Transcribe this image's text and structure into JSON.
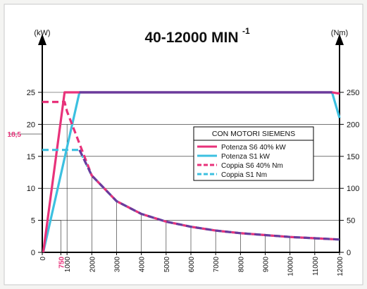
{
  "chart_data": {
    "type": "line",
    "title": "40-12000 MIN",
    "title_superscript": "-1",
    "ylabel_left": "(kW)",
    "ylabel_right": "(Nm)",
    "x": [
      0,
      750,
      1000,
      2000,
      3000,
      4000,
      5000,
      6000,
      7000,
      8000,
      9000,
      10000,
      11000,
      12000
    ],
    "x_tick_labels": [
      "0",
      "750",
      "1000",
      "2000",
      "3000",
      "4000",
      "5000",
      "6000",
      "7000",
      "8000",
      "9000",
      "10000",
      "11000",
      "12000"
    ],
    "xlim": [
      0,
      12000
    ],
    "ylim_left": [
      0,
      30
    ],
    "y_left_ticks": [
      "0",
      "5",
      "10",
      "15",
      "20",
      "25"
    ],
    "y_left_extra_label": "18,5",
    "ylim_right": [
      0,
      300
    ],
    "y_right_ticks": [
      "0",
      "50",
      "100",
      "150",
      "200",
      "250"
    ],
    "legend_title": "CON MOTORI SIEMENS",
    "legend_position": "right-middle",
    "series": [
      {
        "name": "Potenza S6 40% kW",
        "color": "#e8327a",
        "style": "solid",
        "axis": "left",
        "points": [
          [
            40,
            0
          ],
          [
            900,
            25
          ],
          [
            11700,
            25
          ],
          [
            12000,
            24.8
          ]
        ]
      },
      {
        "name": "Potenza S1 kW",
        "color": "#3cc0e0",
        "style": "solid",
        "axis": "left",
        "points": [
          [
            40,
            0
          ],
          [
            1500,
            25
          ],
          [
            11700,
            25
          ],
          [
            12000,
            21
          ]
        ]
      },
      {
        "name": "Coppia S6 40% Nm",
        "color": "#e8327a",
        "style": "dashed",
        "axis": "right",
        "points": [
          [
            0,
            235
          ],
          [
            900,
            235
          ],
          [
            1000,
            220
          ],
          [
            2000,
            120
          ],
          [
            3000,
            80
          ],
          [
            4000,
            60
          ],
          [
            5000,
            48
          ],
          [
            6000,
            40
          ],
          [
            7000,
            34
          ],
          [
            8000,
            30
          ],
          [
            9000,
            27
          ],
          [
            10000,
            24
          ],
          [
            11000,
            22
          ],
          [
            12000,
            20
          ]
        ]
      },
      {
        "name": "Coppia S1 Nm",
        "color": "#3cc0e0",
        "style": "dashed",
        "axis": "right",
        "points": [
          [
            0,
            160
          ],
          [
            1500,
            160
          ],
          [
            2000,
            120
          ],
          [
            3000,
            80
          ],
          [
            4000,
            60
          ],
          [
            5000,
            48
          ],
          [
            6000,
            40
          ],
          [
            7000,
            34
          ],
          [
            8000,
            30
          ],
          [
            9000,
            27
          ],
          [
            10000,
            24
          ],
          [
            11000,
            22
          ],
          [
            12000,
            20
          ]
        ]
      }
    ],
    "overlap_color": "#6a3a9c"
  }
}
